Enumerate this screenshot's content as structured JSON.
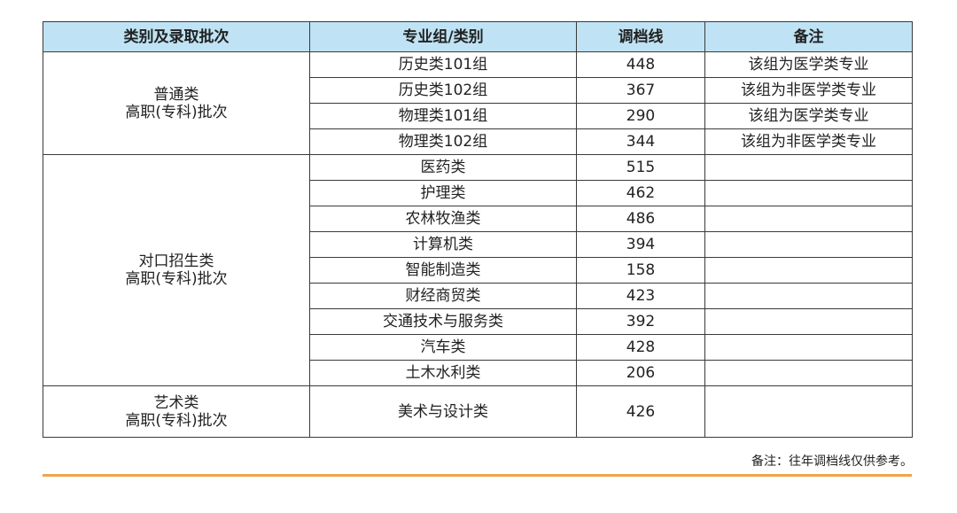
{
  "table": {
    "columns": [
      "类别及录取批次",
      "专业组/类别",
      "调档线",
      "备注"
    ],
    "groups": [
      {
        "label": [
          "普通类",
          "高职(专科)批次"
        ],
        "rows": [
          [
            "历史类101组",
            448,
            "该组为医学类专业"
          ],
          [
            "历史类102组",
            367,
            "该组为非医学类专业"
          ],
          [
            "物理类101组",
            290,
            "该组为医学类专业"
          ],
          [
            "物理类102组",
            344,
            "该组为非医学类专业"
          ]
        ]
      },
      {
        "label": [
          "对口招生类",
          "高职(专科)批次"
        ],
        "rows": [
          [
            "医药类",
            515,
            null
          ],
          [
            "护理类",
            462,
            null
          ],
          [
            "农林牧渔类",
            486,
            null
          ],
          [
            "计算机类",
            394,
            null
          ],
          [
            "智能制造类",
            158,
            null
          ],
          [
            "财经商贸类",
            423,
            null
          ],
          [
            "交通技术与服务类",
            392,
            null
          ],
          [
            "汽车类",
            428,
            null
          ],
          [
            "土木水利类",
            206,
            null
          ]
        ]
      },
      {
        "label": [
          "艺术类",
          "高职(专科)批次"
        ],
        "rows": [
          [
            "美术与设计类",
            426,
            null
          ]
        ]
      }
    ]
  },
  "footnote": "备注：往年调档线仅供参考。"
}
